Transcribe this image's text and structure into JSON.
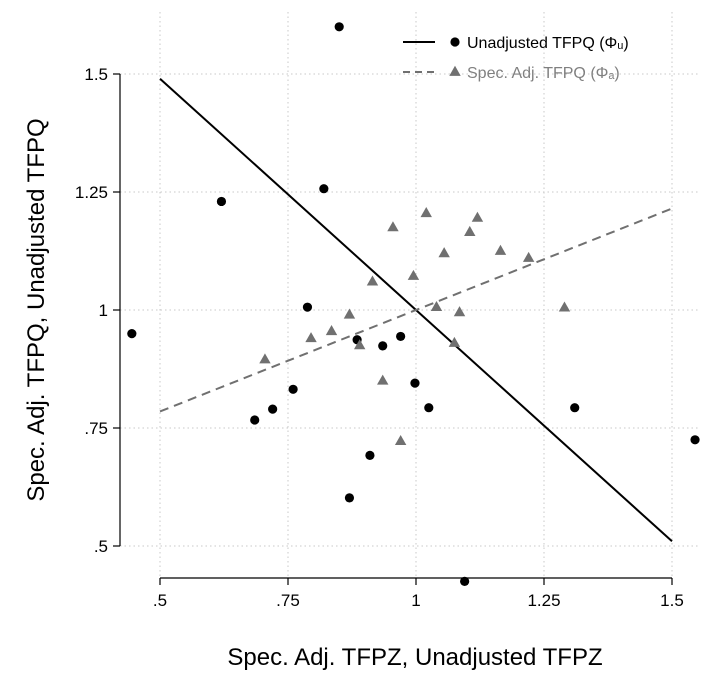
{
  "chart_data": {
    "type": "scatter",
    "xlabel": "Spec. Adj. TFPZ, Unadjusted TFPZ",
    "ylabel": "Spec. Adj. TFPQ, Unadjusted TFPQ",
    "xlim": [
      0.5,
      1.5
    ],
    "ylim": [
      0.5,
      1.5
    ],
    "xticks": [
      {
        "value": 0.5,
        "label": ".5"
      },
      {
        "value": 0.75,
        "label": ".75"
      },
      {
        "value": 1,
        "label": "1"
      },
      {
        "value": 1.25,
        "label": "1.25"
      },
      {
        "value": 1.5,
        "label": "1.5"
      }
    ],
    "yticks": [
      {
        "value": 0.5,
        "label": ".5"
      },
      {
        "value": 0.75,
        "label": ".75"
      },
      {
        "value": 1,
        "label": "1"
      },
      {
        "value": 1.25,
        "label": "1.25"
      },
      {
        "value": 1.5,
        "label": "1.5"
      }
    ],
    "grid": true,
    "legend_position": "top-right",
    "series": [
      {
        "name": "Unadjusted TFPQ (Φᵤ)",
        "marker": "circle",
        "color": "#000000",
        "line_style": "solid",
        "fit_line": [
          [
            0.5,
            1.49
          ],
          [
            1.5,
            0.51
          ]
        ],
        "points": [
          [
            0.445,
            0.95
          ],
          [
            0.62,
            1.23
          ],
          [
            0.685,
            0.767
          ],
          [
            0.72,
            0.79
          ],
          [
            0.76,
            0.832
          ],
          [
            0.788,
            1.006
          ],
          [
            0.82,
            1.257
          ],
          [
            0.85,
            1.6
          ],
          [
            0.87,
            0.602
          ],
          [
            0.885,
            0.937
          ],
          [
            0.91,
            0.692
          ],
          [
            0.935,
            0.924
          ],
          [
            0.97,
            0.944
          ],
          [
            0.998,
            0.845
          ],
          [
            1.025,
            0.793
          ],
          [
            1.095,
            0.425
          ],
          [
            1.31,
            0.793
          ],
          [
            1.545,
            0.725
          ]
        ]
      },
      {
        "name": "Spec. Adj. TFPQ (Φₐ)",
        "marker": "triangle",
        "color": "#707070",
        "line_style": "dashed",
        "fit_line": [
          [
            0.5,
            0.785
          ],
          [
            1.5,
            1.215
          ]
        ],
        "points": [
          [
            0.705,
            0.895
          ],
          [
            0.795,
            0.94
          ],
          [
            0.835,
            0.955
          ],
          [
            0.87,
            0.99
          ],
          [
            0.89,
            0.925
          ],
          [
            0.915,
            1.06
          ],
          [
            0.935,
            0.85
          ],
          [
            0.955,
            1.175
          ],
          [
            0.97,
            0.722
          ],
          [
            0.995,
            1.072
          ],
          [
            1.02,
            1.205
          ],
          [
            1.04,
            1.006
          ],
          [
            1.055,
            1.12
          ],
          [
            1.075,
            0.93
          ],
          [
            1.085,
            0.995
          ],
          [
            1.105,
            1.165
          ],
          [
            1.12,
            1.195
          ],
          [
            1.165,
            1.125
          ],
          [
            1.22,
            1.11
          ],
          [
            1.29,
            1.005
          ]
        ]
      }
    ]
  }
}
